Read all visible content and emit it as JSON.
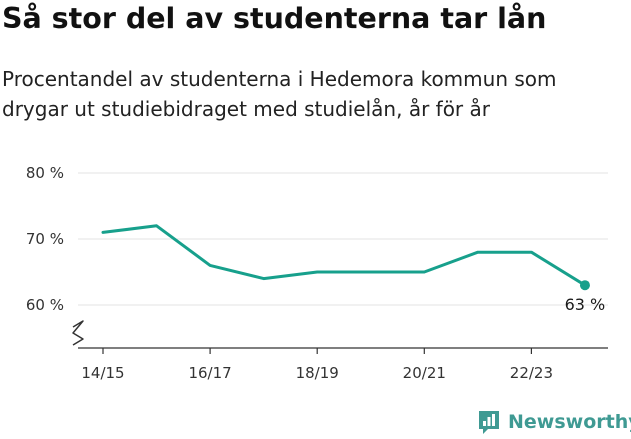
{
  "chart_data": {
    "type": "line",
    "title": "Så stor del av studenterna tar lån",
    "subtitle": "Procentandel av studenterna i Hedemora kommun som drygar ut studiebidraget med studielån, år för år",
    "x": [
      "14/15",
      "15/16",
      "16/17",
      "17/18",
      "18/19",
      "19/20",
      "20/21",
      "21/22",
      "22/23",
      "23/24"
    ],
    "x_tick_labels": [
      "14/15",
      "16/17",
      "18/19",
      "20/21",
      "22/23"
    ],
    "series": [
      {
        "values": [
          71,
          72,
          66,
          64,
          65,
          65,
          65,
          68,
          68,
          63
        ],
        "color": "#17a08c"
      }
    ],
    "y_ticks": [
      60,
      70,
      80
    ],
    "y_tick_suffix": " %",
    "ylim": [
      54,
      80
    ],
    "y_axis_break": true,
    "grid": true,
    "end_annotation": "63 %"
  },
  "branding": {
    "name": "Newsworthy",
    "logo_icon": "bar-chart-icon",
    "color": "#3f9a93"
  }
}
